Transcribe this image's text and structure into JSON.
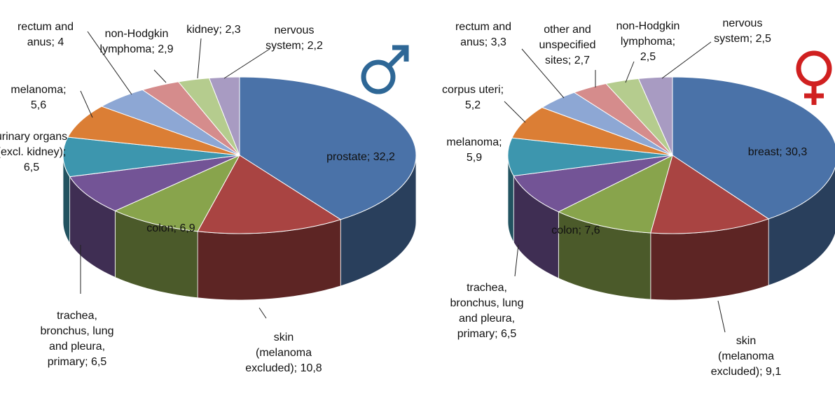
{
  "chart_data": [
    {
      "type": "pie",
      "categories": [
        "prostate",
        "skin (melanoma excluded)",
        "colon",
        "trachea, bronchus, lung and pleura, primary",
        "urinary organs (excl. kidney)",
        "melanoma",
        "rectum and anus",
        "non-Hodgkin lymphoma",
        "kidney",
        "nervous system"
      ],
      "values": [
        32.2,
        10.8,
        6.9,
        6.5,
        6.5,
        5.6,
        4,
        2.9,
        2.3,
        2.2
      ],
      "value_labels": [
        "32,2",
        "10,8",
        "6,9",
        "6,5",
        "6,5",
        "5,6",
        "4",
        "2,9",
        "2,3",
        "2,2"
      ],
      "label_separator": ";",
      "colors": [
        "#4a72a8",
        "#a94442",
        "#88a44c",
        "#735496",
        "#3d96ae",
        "#db7e35",
        "#8da7d4",
        "#d58c8c",
        "#b5cc8e",
        "#a89bc2"
      ]
    },
    {
      "type": "pie",
      "categories": [
        "breast",
        "skin (melanoma excluded)",
        "colon",
        "trachea, bronchus, lung and pleura, primary",
        "melanoma",
        "corpus uteri",
        "rectum and anus",
        "other and unspecified sites",
        "non-Hodgkin lymphoma",
        "nervous system"
      ],
      "values": [
        30.3,
        9.1,
        7.6,
        6.5,
        5.9,
        5.2,
        3.3,
        2.7,
        2.5,
        2.5
      ],
      "value_labels": [
        "30,3",
        "9,1",
        "7,6",
        "6,5",
        "5,9",
        "5,2",
        "3,3",
        "2,7",
        "2,5",
        "2,5"
      ],
      "label_separator": ";",
      "colors": [
        "#4a72a8",
        "#a94442",
        "#88a44c",
        "#735496",
        "#3d96ae",
        "#db7e35",
        "#8da7d4",
        "#d58c8c",
        "#b5cc8e",
        "#a89bc2"
      ]
    }
  ]
}
